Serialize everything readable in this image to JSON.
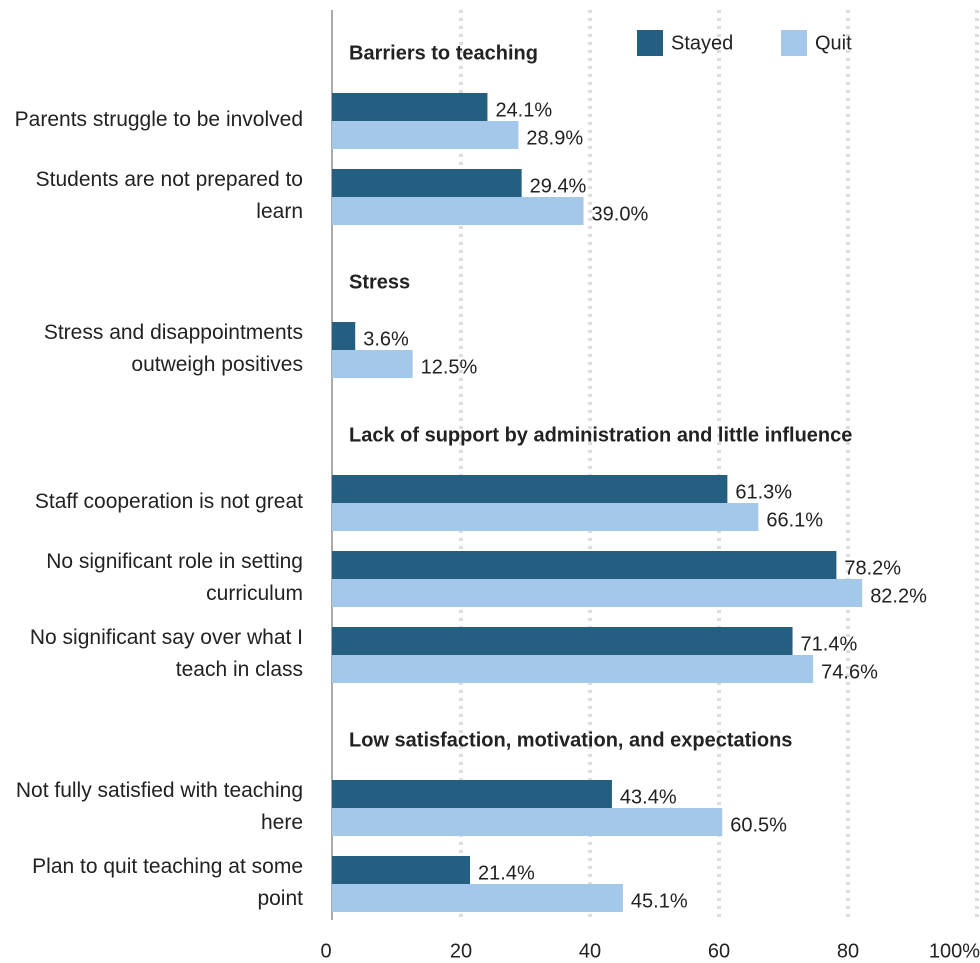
{
  "chart_data": {
    "type": "grouped-hbar",
    "sections": [
      {
        "title": "Barriers to teaching",
        "categories": [
          "Parents struggle to be involved",
          "Students are not prepared to learn"
        ]
      },
      {
        "title": "Stress",
        "categories": [
          "Stress and disappointments outweigh positives"
        ]
      },
      {
        "title": "Lack of support by administration and little influence",
        "categories": [
          "Staff cooperation is not great",
          "No significant role in setting curriculum",
          "No significant say over what I teach in class"
        ]
      },
      {
        "title": "Low satisfaction, motivation, and expectations",
        "categories": [
          "Not fully satisfied with teaching here",
          "Plan to quit teaching at some point"
        ]
      }
    ],
    "series": [
      {
        "name": "Stayed",
        "color": "#245f82",
        "values": [
          24.1,
          29.4,
          3.6,
          61.3,
          78.2,
          71.4,
          43.4,
          21.4
        ],
        "value_labels": [
          "24.1%",
          "29.4%",
          "3.6%",
          "61.3%",
          "78.2%",
          "71.4%",
          "43.4%",
          "21.4%"
        ]
      },
      {
        "name": "Quit",
        "color": "#a3c8e9",
        "values": [
          28.9,
          39.0,
          12.5,
          66.1,
          82.2,
          74.6,
          60.5,
          45.1
        ],
        "value_labels": [
          "28.9%",
          "39.0%",
          "12.5%",
          "66.1%",
          "82.2%",
          "74.6%",
          "60.5%",
          "45.1%"
        ]
      }
    ],
    "xlim": [
      0,
      100
    ],
    "xticks": [
      0,
      20,
      40,
      60,
      80,
      {
        "value": 100,
        "label": "100%"
      }
    ],
    "grid": true
  }
}
